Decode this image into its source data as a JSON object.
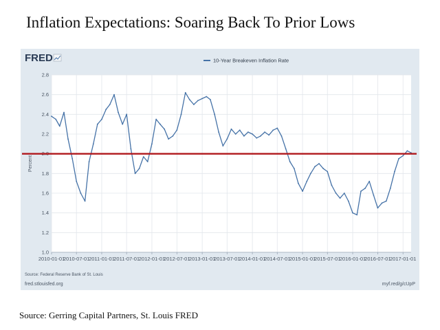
{
  "page": {
    "title": "Inflation Expectations: Soaring Back To Prior Lows",
    "source": "Source: Gerring Capital Partners, St. Louis FRED"
  },
  "fred": {
    "logo": "FRED",
    "source_note": "Source: Federal Reserve Bank of St. Louis",
    "site": "fred.stlouisfed.org",
    "short_link": "myf.red/g/cUpP"
  },
  "chart_data": {
    "type": "line",
    "title": "",
    "xlabel": "",
    "ylabel": "Percent",
    "legend": [
      "10-Year Breakeven Inflation Rate"
    ],
    "legend_position": "top-center",
    "grid": true,
    "ylim": [
      1.0,
      2.8
    ],
    "yticks": [
      "1.0",
      "1.2",
      "1.4",
      "1.6",
      "1.8",
      "2.0",
      "2.2",
      "2.4",
      "2.6",
      "2.8"
    ],
    "xlim": [
      "2010-01-01",
      "2017-03-01"
    ],
    "xticks": [
      "2010-01-01",
      "2010-07-01",
      "2011-01-01",
      "2011-07-01",
      "2012-01-01",
      "2012-07-01",
      "2013-01-01",
      "2013-07-01",
      "2014-01-01",
      "2014-07-01",
      "2015-01-01",
      "2015-07-01",
      "2016-01-01",
      "2016-07-01",
      "2017-01-01"
    ],
    "reference_line": {
      "value": 2.0,
      "color": "#b0171b"
    },
    "series_color": "#4572a7",
    "series": [
      {
        "name": "10-Year Breakeven Inflation Rate",
        "x": [
          "2010-01-01",
          "2010-02-01",
          "2010-03-01",
          "2010-04-01",
          "2010-05-01",
          "2010-06-01",
          "2010-07-01",
          "2010-08-01",
          "2010-09-01",
          "2010-10-01",
          "2010-11-01",
          "2010-12-01",
          "2011-01-01",
          "2011-02-01",
          "2011-03-01",
          "2011-04-01",
          "2011-05-01",
          "2011-06-01",
          "2011-07-01",
          "2011-08-01",
          "2011-09-01",
          "2011-10-01",
          "2011-11-01",
          "2011-12-01",
          "2012-01-01",
          "2012-02-01",
          "2012-03-01",
          "2012-04-01",
          "2012-05-01",
          "2012-06-01",
          "2012-07-01",
          "2012-08-01",
          "2012-09-01",
          "2012-10-01",
          "2012-11-01",
          "2012-12-01",
          "2013-01-01",
          "2013-02-01",
          "2013-03-01",
          "2013-04-01",
          "2013-05-01",
          "2013-06-01",
          "2013-07-01",
          "2013-08-01",
          "2013-09-01",
          "2013-10-01",
          "2013-11-01",
          "2013-12-01",
          "2014-01-01",
          "2014-02-01",
          "2014-03-01",
          "2014-04-01",
          "2014-05-01",
          "2014-06-01",
          "2014-07-01",
          "2014-08-01",
          "2014-09-01",
          "2014-10-01",
          "2014-11-01",
          "2014-12-01",
          "2015-01-01",
          "2015-02-01",
          "2015-03-01",
          "2015-04-01",
          "2015-05-01",
          "2015-06-01",
          "2015-07-01",
          "2015-08-01",
          "2015-09-01",
          "2015-10-01",
          "2015-11-01",
          "2015-12-01",
          "2016-01-01",
          "2016-02-01",
          "2016-03-01",
          "2016-04-01",
          "2016-05-01",
          "2016-06-01",
          "2016-07-01",
          "2016-08-01",
          "2016-09-01",
          "2016-10-01",
          "2016-11-01",
          "2016-12-01",
          "2017-01-01",
          "2017-02-01",
          "2017-03-01"
        ],
        "values": [
          2.38,
          2.35,
          2.28,
          2.42,
          2.15,
          1.95,
          1.72,
          1.6,
          1.52,
          1.92,
          2.1,
          2.3,
          2.35,
          2.45,
          2.5,
          2.6,
          2.42,
          2.3,
          2.4,
          2.05,
          1.8,
          1.85,
          1.97,
          1.92,
          2.1,
          2.35,
          2.3,
          2.25,
          2.15,
          2.18,
          2.24,
          2.4,
          2.62,
          2.55,
          2.5,
          2.54,
          2.56,
          2.58,
          2.55,
          2.4,
          2.22,
          2.08,
          2.15,
          2.25,
          2.2,
          2.24,
          2.18,
          2.22,
          2.2,
          2.16,
          2.18,
          2.22,
          2.19,
          2.24,
          2.26,
          2.18,
          2.05,
          1.92,
          1.85,
          1.7,
          1.62,
          1.72,
          1.8,
          1.87,
          1.9,
          1.85,
          1.82,
          1.68,
          1.6,
          1.55,
          1.6,
          1.52,
          1.4,
          1.38,
          1.62,
          1.65,
          1.72,
          1.58,
          1.45,
          1.5,
          1.52,
          1.65,
          1.82,
          1.95,
          1.98,
          2.03,
          2.01
        ]
      }
    ]
  }
}
